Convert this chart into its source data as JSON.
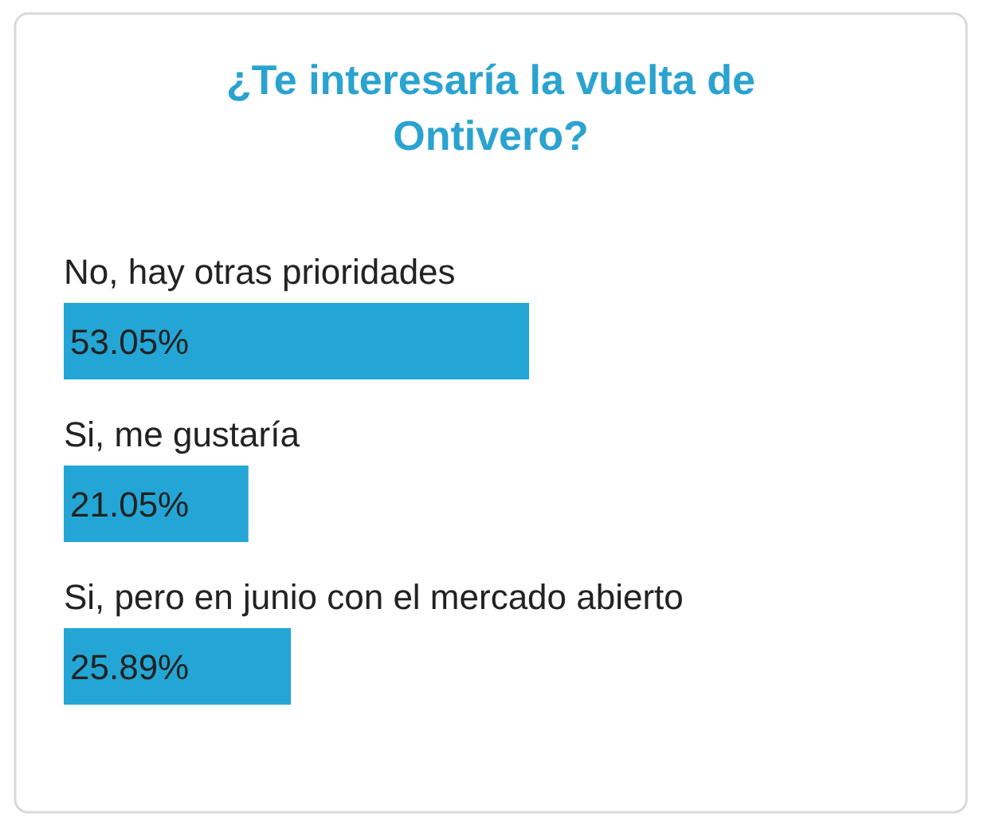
{
  "chart_data": {
    "type": "bar",
    "orientation": "horizontal",
    "title": "¿Te interesaría la vuelta de Ontivero?",
    "categories": [
      "No, hay otras prioridades",
      "Si, me gustaría",
      "Si, pero en junio con el mercado abierto"
    ],
    "values": [
      53.05,
      21.05,
      25.89
    ],
    "value_labels": [
      "53.05%",
      "21.05%",
      "25.89%"
    ],
    "color": "#23a6d5",
    "tick_labels": false
  }
}
